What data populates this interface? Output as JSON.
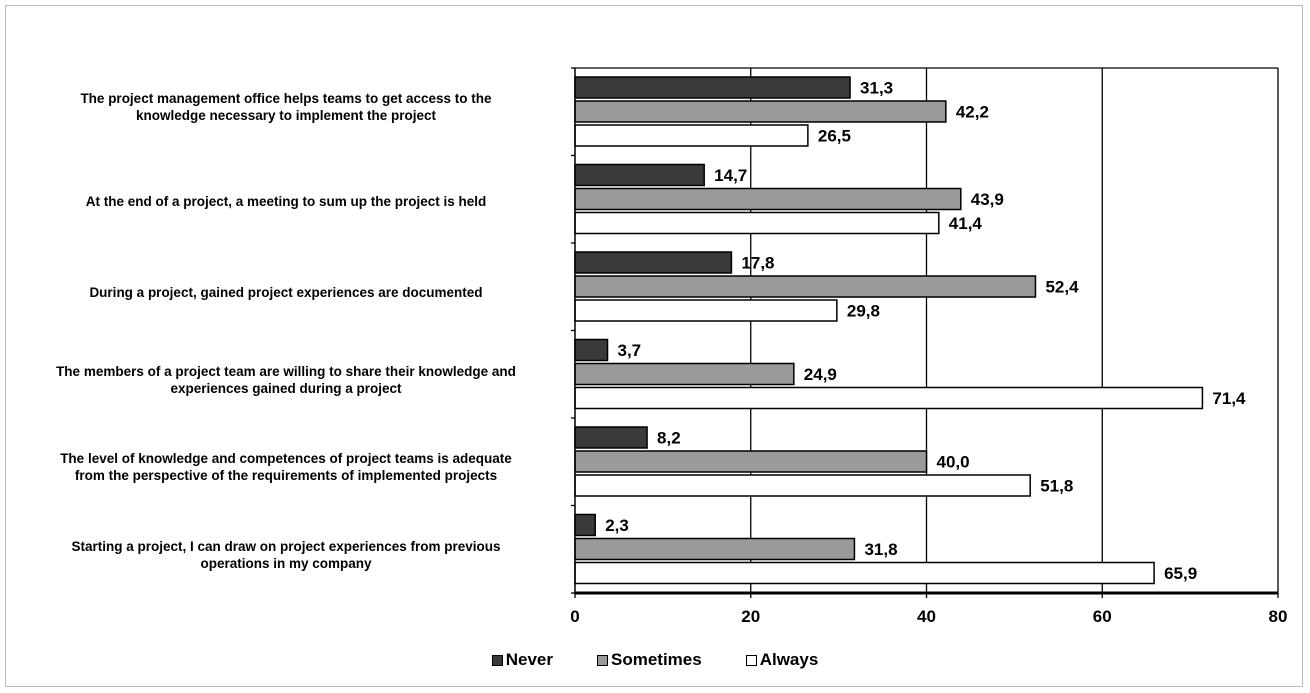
{
  "chart_data": {
    "type": "bar",
    "orientation": "horizontal",
    "categories": [
      "The project management office helps teams to get access to the\nknowledge necessary to implement the project",
      "At the end of a project, a meeting to sum up the project is held",
      "During a project, gained project experiences are documented",
      "The members of a project team are willing to share their knowledge and\nexperiences gained during a project",
      "The level of knowledge and competences of project teams is adequate\nfrom the perspective of the requirements of implemented projects",
      "Starting a project, I can draw on project experiences from previous\noperations in my company"
    ],
    "series": [
      {
        "name": "Never",
        "color": "#3a3a3a",
        "values": [
          31.3,
          14.7,
          17.8,
          3.7,
          8.2,
          2.3
        ],
        "labels": [
          "31,3",
          "14,7",
          "17,8",
          "3,7",
          "8,2",
          "2,3"
        ]
      },
      {
        "name": "Sometimes",
        "color": "#9a9a9a",
        "values": [
          42.2,
          43.9,
          52.4,
          24.9,
          40.0,
          31.8
        ],
        "labels": [
          "42,2",
          "43,9",
          "52,4",
          "24,9",
          "40,0",
          "31,8"
        ]
      },
      {
        "name": "Always",
        "color": "#ffffff",
        "values": [
          26.5,
          41.4,
          29.8,
          71.4,
          51.8,
          65.9
        ],
        "labels": [
          "26,5",
          "41,4",
          "29,8",
          "71,4",
          "51,8",
          "65,9"
        ]
      }
    ],
    "xlim": [
      0,
      80
    ],
    "xticks": [
      0,
      20,
      40,
      60,
      80
    ],
    "xtick_labels": [
      "0",
      "20",
      "40",
      "60",
      "80"
    ],
    "grid": true,
    "legend_position": "bottom"
  }
}
